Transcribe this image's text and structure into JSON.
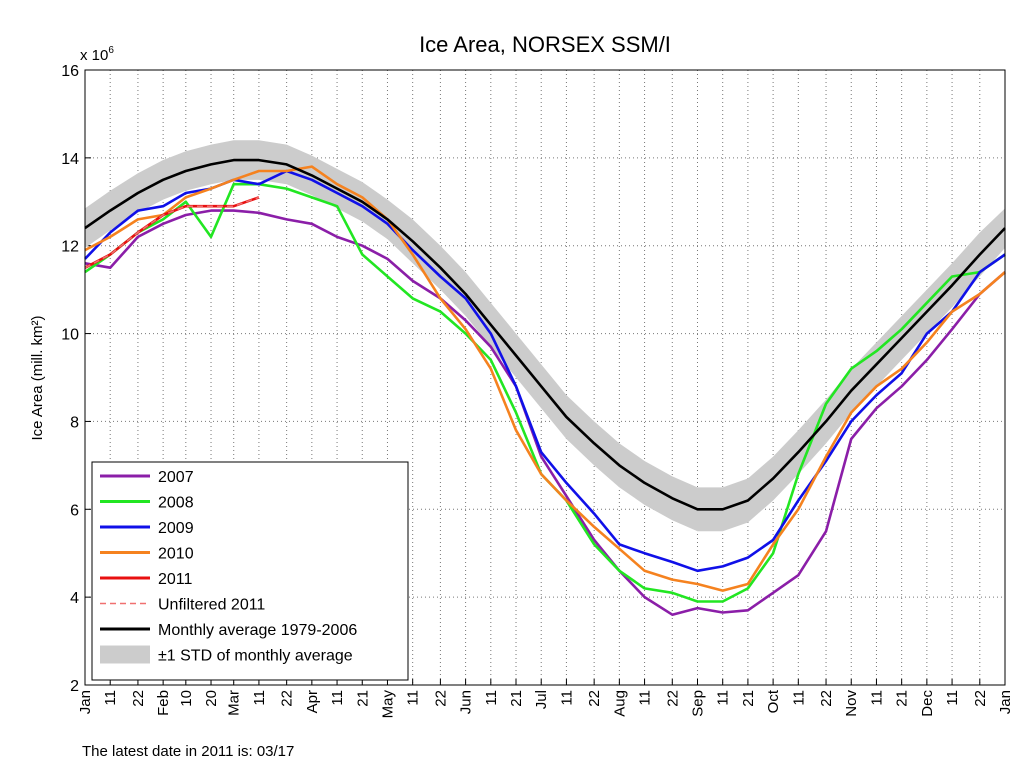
{
  "chart_data": {
    "type": "line",
    "title": "Ice Area, NORSEX SSM/I",
    "ylabel": "Ice Area (mill. km²)",
    "y_multiplier": {
      "base": "x 10",
      "exponent": "6"
    },
    "footnote": "The latest date in 2011 is: 03/17",
    "xlim": [
      1,
      366
    ],
    "ylim": [
      2,
      16
    ],
    "yticks": [
      2,
      4,
      6,
      8,
      10,
      12,
      14,
      16
    ],
    "xticks": [
      {
        "value": 1,
        "label": "Jan"
      },
      11,
      22,
      {
        "value": 32,
        "label": "Feb"
      },
      {
        "value": 41,
        "label": "10"
      },
      {
        "value": 51,
        "label": "20"
      },
      {
        "value": 60,
        "label": "Mar"
      },
      {
        "value": 70,
        "label": "11"
      },
      {
        "value": 81,
        "label": "22"
      },
      {
        "value": 91,
        "label": "Apr"
      },
      {
        "value": 101,
        "label": "11"
      },
      {
        "value": 111,
        "label": "21"
      },
      {
        "value": 121,
        "label": "May"
      },
      {
        "value": 131,
        "label": "11"
      },
      {
        "value": 142,
        "label": "22"
      },
      {
        "value": 152,
        "label": "Jun"
      },
      {
        "value": 162,
        "label": "11"
      },
      {
        "value": 172,
        "label": "21"
      },
      {
        "value": 182,
        "label": "Jul"
      },
      {
        "value": 192,
        "label": "11"
      },
      {
        "value": 203,
        "label": "22"
      },
      {
        "value": 213,
        "label": "Aug"
      },
      {
        "value": 223,
        "label": "11"
      },
      {
        "value": 234,
        "label": "22"
      },
      {
        "value": 244,
        "label": "Sep"
      },
      {
        "value": 254,
        "label": "11"
      },
      {
        "value": 264,
        "label": "21"
      },
      {
        "value": 274,
        "label": "Oct"
      },
      {
        "value": 284,
        "label": "11"
      },
      {
        "value": 295,
        "label": "22"
      },
      {
        "value": 305,
        "label": "Nov"
      },
      {
        "value": 315,
        "label": "11"
      },
      {
        "value": 325,
        "label": "21"
      },
      {
        "value": 335,
        "label": "Dec"
      },
      {
        "value": 345,
        "label": "11"
      },
      {
        "value": 356,
        "label": "22"
      },
      {
        "value": 366,
        "label": "Jan"
      }
    ],
    "grid": true,
    "legend": "lower left",
    "x": [
      1,
      11,
      22,
      32,
      41,
      51,
      60,
      70,
      81,
      91,
      101,
      111,
      121,
      131,
      142,
      152,
      162,
      172,
      182,
      192,
      203,
      213,
      223,
      234,
      244,
      254,
      264,
      274,
      284,
      295,
      305,
      315,
      325,
      335,
      345,
      356,
      366
    ],
    "series": [
      {
        "name": "2007",
        "color": "#8b1ea8",
        "style": "solid",
        "values": [
          11.6,
          11.5,
          12.2,
          12.5,
          12.7,
          12.8,
          12.8,
          12.75,
          12.6,
          12.5,
          12.2,
          12.0,
          11.7,
          11.2,
          10.8,
          10.3,
          9.7,
          8.8,
          7.2,
          6.3,
          5.3,
          4.6,
          4.0,
          3.6,
          3.75,
          3.65,
          3.7,
          4.1,
          4.5,
          5.5,
          7.6,
          8.3,
          8.8,
          9.4,
          10.1,
          10.9,
          11.4
        ]
      },
      {
        "name": "2008",
        "color": "#22e622",
        "style": "solid",
        "values": [
          11.4,
          11.8,
          12.3,
          12.6,
          13.0,
          12.2,
          13.4,
          13.4,
          13.3,
          13.1,
          12.9,
          11.8,
          11.3,
          10.8,
          10.5,
          10.0,
          9.4,
          8.2,
          6.8,
          6.2,
          5.2,
          4.6,
          4.2,
          4.1,
          3.9,
          3.9,
          4.2,
          5.0,
          6.8,
          8.4,
          9.2,
          9.6,
          10.1,
          10.7,
          11.3,
          11.4,
          11.8
        ]
      },
      {
        "name": "2009",
        "color": "#1010e8",
        "style": "solid",
        "values": [
          11.7,
          12.3,
          12.8,
          12.9,
          13.2,
          13.3,
          13.5,
          13.4,
          13.7,
          13.5,
          13.2,
          12.9,
          12.5,
          11.9,
          11.3,
          10.8,
          10.0,
          8.8,
          7.3,
          6.6,
          5.9,
          5.2,
          5.0,
          4.8,
          4.6,
          4.7,
          4.9,
          5.3,
          6.2,
          7.1,
          8.0,
          8.6,
          9.1,
          10.0,
          10.5,
          11.4,
          11.8
        ]
      },
      {
        "name": "2010",
        "color": "#f5821f",
        "style": "solid",
        "values": [
          11.9,
          12.2,
          12.6,
          12.7,
          13.1,
          13.3,
          13.5,
          13.7,
          13.7,
          13.8,
          13.4,
          13.1,
          12.6,
          11.8,
          10.8,
          10.1,
          9.2,
          7.8,
          6.8,
          6.2,
          5.6,
          5.1,
          4.6,
          4.4,
          4.3,
          4.15,
          4.3,
          5.2,
          6.0,
          7.2,
          8.2,
          8.8,
          9.2,
          9.8,
          10.5,
          10.9,
          11.4
        ]
      },
      {
        "name": "2011",
        "color": "#e81010",
        "style": "solid",
        "values": [
          11.5,
          11.8,
          12.3,
          12.7,
          12.9,
          12.9,
          12.9,
          13.1,
          null,
          null,
          null,
          null,
          null,
          null,
          null,
          null,
          null,
          null,
          null,
          null,
          null,
          null,
          null,
          null,
          null,
          null,
          null,
          null,
          null,
          null,
          null,
          null,
          null,
          null,
          null,
          null,
          null
        ]
      },
      {
        "name": "Unfiltered 2011",
        "color": "#f07070",
        "style": "dashed",
        "values": [
          11.5,
          11.8,
          12.3,
          12.7,
          12.9,
          12.9,
          12.9,
          13.1,
          null,
          null,
          null,
          null,
          null,
          null,
          null,
          null,
          null,
          null,
          null,
          null,
          null,
          null,
          null,
          null,
          null,
          null,
          null,
          null,
          null,
          null,
          null,
          null,
          null,
          null,
          null,
          null,
          null
        ]
      },
      {
        "name": "Monthly average 1979-2006",
        "color": "#000000",
        "style": "solid",
        "values": [
          12.4,
          12.8,
          13.2,
          13.5,
          13.7,
          13.85,
          13.95,
          13.95,
          13.85,
          13.6,
          13.3,
          13.0,
          12.6,
          12.1,
          11.5,
          10.9,
          10.2,
          9.5,
          8.8,
          8.1,
          7.5,
          7.0,
          6.6,
          6.25,
          6.0,
          6.0,
          6.2,
          6.7,
          7.3,
          8.0,
          8.7,
          9.3,
          9.9,
          10.5,
          11.1,
          11.8,
          12.4
        ]
      }
    ],
    "band": {
      "name": "±1 STD of monthly average",
      "color": "#cccccc",
      "upper": [
        12.85,
        13.25,
        13.65,
        13.95,
        14.15,
        14.3,
        14.4,
        14.4,
        14.3,
        14.05,
        13.75,
        13.45,
        13.05,
        12.6,
        12.0,
        11.4,
        10.7,
        10.0,
        9.3,
        8.6,
        8.0,
        7.5,
        7.1,
        6.75,
        6.5,
        6.5,
        6.7,
        7.2,
        7.8,
        8.5,
        9.2,
        9.8,
        10.4,
        11.0,
        11.6,
        12.3,
        12.85
      ],
      "lower": [
        11.95,
        12.35,
        12.75,
        13.05,
        13.25,
        13.4,
        13.5,
        13.5,
        13.4,
        13.15,
        12.85,
        12.55,
        12.15,
        11.6,
        11.0,
        10.4,
        9.7,
        9.0,
        8.3,
        7.6,
        7.0,
        6.5,
        6.1,
        5.75,
        5.5,
        5.5,
        5.7,
        6.2,
        6.8,
        7.5,
        8.2,
        8.8,
        9.4,
        10.0,
        10.6,
        11.3,
        11.95
      ]
    }
  }
}
